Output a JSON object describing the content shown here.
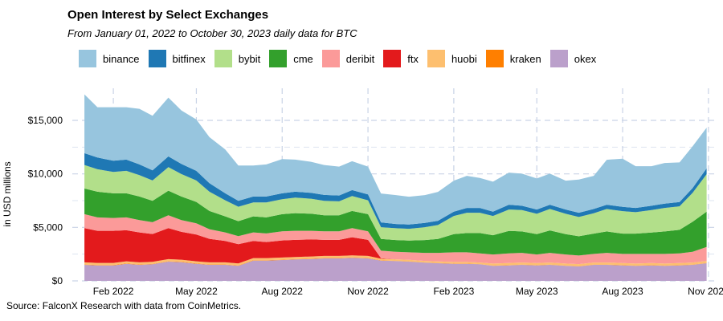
{
  "chart_data": {
    "type": "area",
    "stacked": true,
    "title": "Open Interest by Select Exchanges",
    "subtitle": "From January 01, 2022 to October 30, 2023 daily data for BTC",
    "ylabel": "in USD millions",
    "xlabel": "",
    "source": "FalconX Research with data from CoinMetrics.",
    "ylim": [
      0,
      18000
    ],
    "y_ticks": [
      {
        "value": 0,
        "label": "$0"
      },
      {
        "value": 5000,
        "label": "$5,000"
      },
      {
        "value": 10000,
        "label": "$10,000"
      },
      {
        "value": 15000,
        "label": "$15,000"
      }
    ],
    "x_range": [
      "2021-12-19",
      "2023-11-08"
    ],
    "x_ticks": [
      {
        "date": "2022-02-01",
        "label": "Feb 2022"
      },
      {
        "date": "2022-05-01",
        "label": "May 2022"
      },
      {
        "date": "2022-08-01",
        "label": "Aug 2022"
      },
      {
        "date": "2022-11-01",
        "label": "Nov 2022"
      },
      {
        "date": "2023-02-01",
        "label": "Feb 2023"
      },
      {
        "date": "2023-05-01",
        "label": "May 2023"
      },
      {
        "date": "2023-08-01",
        "label": "Aug 2023"
      },
      {
        "date": "2023-11-01",
        "label": "Nov 2023"
      }
    ],
    "dates": [
      "2022-01-01",
      "2022-01-15",
      "2022-02-01",
      "2022-02-15",
      "2022-03-01",
      "2022-03-15",
      "2022-04-01",
      "2022-04-15",
      "2022-05-01",
      "2022-05-15",
      "2022-06-01",
      "2022-06-15",
      "2022-07-01",
      "2022-07-15",
      "2022-08-01",
      "2022-08-15",
      "2022-09-01",
      "2022-09-15",
      "2022-10-01",
      "2022-10-15",
      "2022-11-01",
      "2022-11-15",
      "2022-12-01",
      "2022-12-15",
      "2023-01-01",
      "2023-01-15",
      "2023-02-01",
      "2023-02-15",
      "2023-03-01",
      "2023-03-15",
      "2023-04-01",
      "2023-04-15",
      "2023-05-01",
      "2023-05-15",
      "2023-06-01",
      "2023-06-15",
      "2023-07-01",
      "2023-07-15",
      "2023-08-01",
      "2023-08-15",
      "2023-09-01",
      "2023-09-15",
      "2023-10-01",
      "2023-10-15",
      "2023-10-30"
    ],
    "series": [
      {
        "name": "okex",
        "color": "#BBA0CB",
        "values": [
          1500,
          1450,
          1450,
          1600,
          1500,
          1550,
          1800,
          1750,
          1600,
          1500,
          1500,
          1400,
          1900,
          1900,
          1950,
          2000,
          2050,
          2100,
          2100,
          2150,
          2100,
          1900,
          1850,
          1800,
          1700,
          1650,
          1600,
          1600,
          1550,
          1400,
          1450,
          1500,
          1450,
          1500,
          1400,
          1350,
          1500,
          1500,
          1450,
          1400,
          1450,
          1400,
          1450,
          1500,
          1650
        ]
      },
      {
        "name": "kraken",
        "color": "#FF7F00",
        "values": [
          30,
          30,
          30,
          30,
          30,
          30,
          30,
          30,
          30,
          30,
          30,
          30,
          30,
          30,
          30,
          30,
          30,
          30,
          30,
          30,
          30,
          20,
          20,
          20,
          20,
          20,
          20,
          20,
          20,
          20,
          20,
          20,
          20,
          20,
          20,
          20,
          20,
          20,
          20,
          20,
          20,
          20,
          20,
          20,
          20
        ]
      },
      {
        "name": "huobi",
        "color": "#FDBF6F",
        "values": [
          200,
          200,
          200,
          200,
          200,
          200,
          200,
          200,
          200,
          200,
          200,
          200,
          200,
          200,
          200,
          200,
          200,
          200,
          200,
          200,
          200,
          150,
          150,
          150,
          150,
          150,
          150,
          150,
          150,
          200,
          200,
          200,
          200,
          200,
          200,
          200,
          200,
          200,
          200,
          200,
          200,
          200,
          200,
          200,
          200
        ]
      },
      {
        "name": "ftx",
        "color": "#E31A1C",
        "values": [
          3200,
          3000,
          3000,
          2900,
          2800,
          2600,
          2900,
          2600,
          2500,
          2200,
          2000,
          1800,
          1600,
          1500,
          1600,
          1600,
          1600,
          1500,
          1500,
          1700,
          1500,
          50,
          0,
          0,
          0,
          0,
          0,
          0,
          0,
          0,
          0,
          0,
          0,
          0,
          0,
          0,
          0,
          0,
          0,
          0,
          0,
          0,
          0,
          0,
          0
        ]
      },
      {
        "name": "deribit",
        "color": "#FB9A99",
        "values": [
          1300,
          1250,
          1200,
          1200,
          1150,
          1100,
          1200,
          1100,
          1050,
          900,
          800,
          750,
          800,
          800,
          850,
          850,
          800,
          800,
          800,
          850,
          800,
          700,
          700,
          700,
          750,
          800,
          900,
          900,
          850,
          850,
          900,
          900,
          800,
          900,
          850,
          800,
          800,
          900,
          850,
          900,
          850,
          900,
          900,
          1000,
          1300
        ]
      },
      {
        "name": "cme",
        "color": "#33A02C",
        "values": [
          2400,
          2400,
          2300,
          2250,
          2200,
          2000,
          2300,
          2200,
          2000,
          1700,
          1500,
          1400,
          1500,
          1500,
          1600,
          1650,
          1600,
          1500,
          1500,
          1600,
          1600,
          1100,
          1100,
          1100,
          1200,
          1300,
          1700,
          1800,
          1900,
          1800,
          2100,
          2000,
          1900,
          2100,
          1900,
          1800,
          1900,
          2000,
          1900,
          1900,
          2000,
          2100,
          2200,
          2800,
          3300
        ]
      },
      {
        "name": "bybit",
        "color": "#B2DF8A",
        "values": [
          2200,
          2100,
          2000,
          2100,
          2000,
          1900,
          2200,
          2100,
          2000,
          1800,
          1500,
          1350,
          1300,
          1400,
          1400,
          1450,
          1400,
          1350,
          1300,
          1400,
          1300,
          1100,
          1100,
          1100,
          1200,
          1300,
          1700,
          1900,
          1900,
          1800,
          2000,
          2000,
          1900,
          2000,
          1900,
          1800,
          1900,
          2100,
          2100,
          2000,
          2100,
          2200,
          2200,
          2700,
          3500
        ]
      },
      {
        "name": "bitfinex",
        "color": "#1F78B4",
        "values": [
          1100,
          1100,
          1050,
          1050,
          1000,
          950,
          1000,
          950,
          900,
          800,
          650,
          550,
          550,
          550,
          550,
          550,
          550,
          550,
          550,
          550,
          550,
          450,
          400,
          400,
          400,
          400,
          400,
          450,
          450,
          400,
          450,
          400,
          400,
          400,
          400,
          400,
          400,
          400,
          400,
          400,
          400,
          400,
          400,
          450,
          550
        ]
      },
      {
        "name": "binance",
        "color": "#97C5DE",
        "values": [
          5500,
          4700,
          5000,
          4900,
          5200,
          5100,
          5500,
          5000,
          4800,
          4300,
          4100,
          3300,
          2900,
          3000,
          3200,
          3000,
          2900,
          2800,
          2700,
          2700,
          2600,
          2700,
          2700,
          2600,
          2600,
          2700,
          2900,
          3000,
          2800,
          2800,
          3000,
          3000,
          2900,
          2900,
          2700,
          3100,
          3100,
          4200,
          4500,
          3900,
          3700,
          3800,
          3700,
          3900,
          3800
        ]
      }
    ]
  },
  "legend_order": [
    "binance",
    "bitfinex",
    "bybit",
    "cme",
    "deribit",
    "ftx",
    "huobi",
    "kraken",
    "okex"
  ]
}
